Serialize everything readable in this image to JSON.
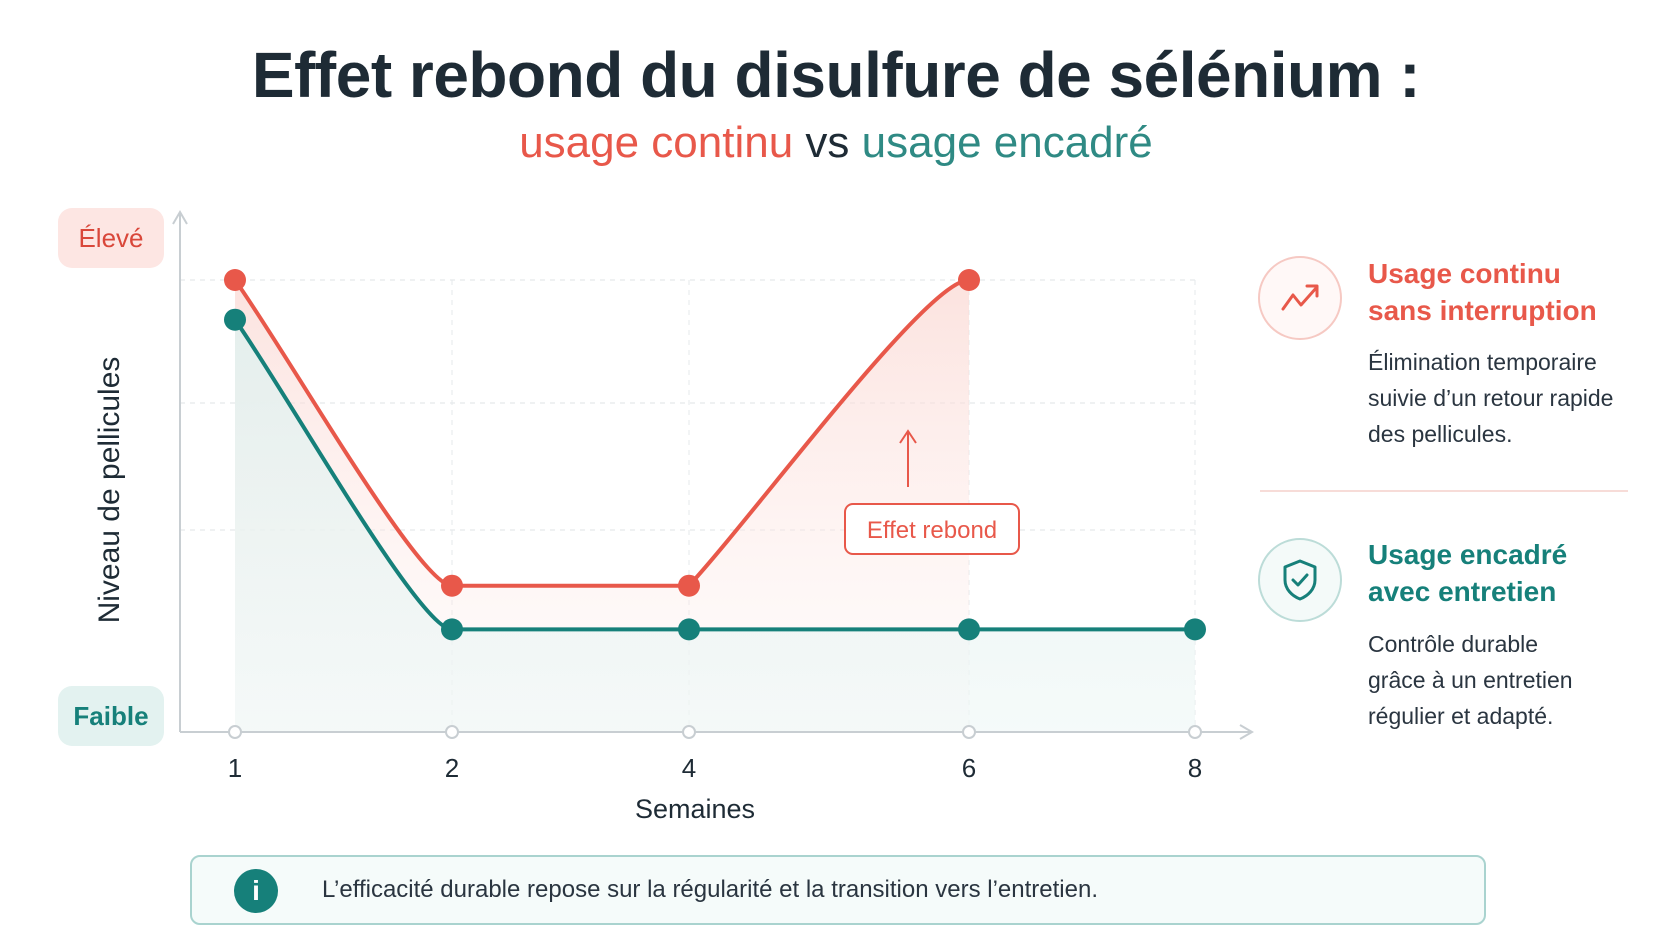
{
  "title": "Effet rebond du disulfure de sélénium :",
  "subtitle": {
    "part1": "usage continu",
    "part2": " vs ",
    "part3": "usage encadré"
  },
  "colors": {
    "red": "#e8584a",
    "teal": "#16807a"
  },
  "chart_data": {
    "type": "line",
    "xlabel": "Semaines",
    "ylabel": "Niveau de pellicules",
    "y_high_label": "Élevé",
    "y_low_label": "Faible",
    "x_ticks": [
      "1",
      "2",
      "4",
      "6",
      "8"
    ],
    "ylim": [
      0,
      100
    ],
    "grid": true,
    "series": [
      {
        "name": "Usage continu sans interruption",
        "color": "#e8584a",
        "points": [
          [
            1,
            100
          ],
          [
            2,
            23
          ],
          [
            4,
            23
          ],
          [
            6,
            100
          ]
        ]
      },
      {
        "name": "Usage encadré avec entretien",
        "color": "#16807a",
        "points": [
          [
            1,
            90
          ],
          [
            2,
            12
          ],
          [
            4,
            12
          ],
          [
            6,
            12
          ],
          [
            8,
            12
          ]
        ]
      }
    ],
    "annotation": "Effet rebond"
  },
  "legend": {
    "continu": {
      "icon": "trend-up-icon",
      "title_line1": "Usage continu",
      "title_line2": "sans interruption",
      "desc_line1": "Élimination temporaire",
      "desc_line2": "suivie d’un retour rapide",
      "desc_line3": "des pellicules."
    },
    "encadre": {
      "icon": "shield-check-icon",
      "title_line1": "Usage encadré",
      "title_line2": "avec entretien",
      "desc_line1": "Contrôle durable",
      "desc_line2": "grâce à un entretien",
      "desc_line3": "régulier et adapté."
    }
  },
  "info": {
    "icon": "info-icon",
    "text": "L’efficacité durable repose sur la régularité et la transition vers l’entretien."
  }
}
